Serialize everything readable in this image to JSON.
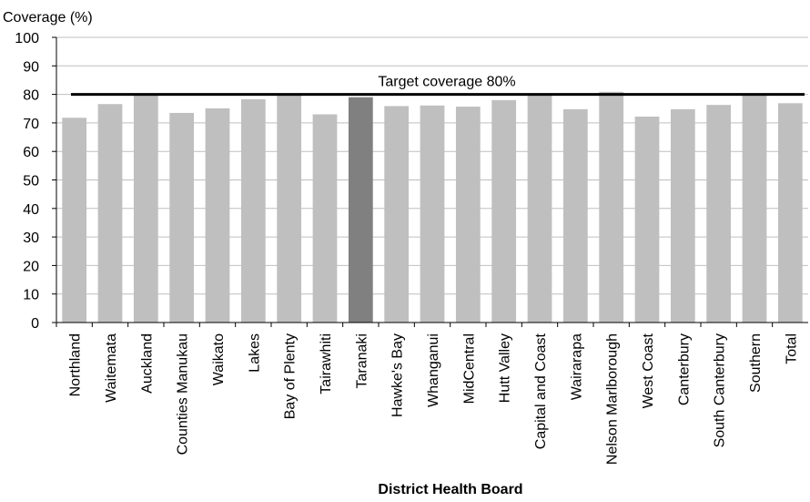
{
  "chart_data": {
    "type": "bar",
    "ylabel": "Coverage (%)",
    "xlabel": "District Health Board",
    "ylim": [
      0,
      100
    ],
    "yticks": [
      0,
      10,
      20,
      30,
      40,
      50,
      60,
      70,
      80,
      90,
      100
    ],
    "grid": true,
    "categories": [
      "Northland",
      "Waitemata",
      "Auckland",
      "Counties Manukau",
      "Waikato",
      "Lakes",
      "Bay of Plenty",
      "Tairawhiti",
      "Taranaki",
      "Hawke's Bay",
      "Whanganui",
      "MidCentral",
      "Hutt Valley",
      "Capital and Coast",
      "Wairarapa",
      "Nelson Marlborough",
      "West Coast",
      "Canterbury",
      "South Canterbury",
      "Southern",
      "Total"
    ],
    "values": [
      71.8,
      76.6,
      79.8,
      73.5,
      75.1,
      78.3,
      80.0,
      73.0,
      79.0,
      75.9,
      76.1,
      75.7,
      78.0,
      80.2,
      74.8,
      80.9,
      72.2,
      74.8,
      76.3,
      79.9,
      76.9
    ],
    "highlight": "Taranaki",
    "bar_color": "#bfbfbf",
    "highlight_color": "#808080",
    "target": {
      "value": 80,
      "label": "Target coverage 80%",
      "color": "#000000"
    }
  }
}
